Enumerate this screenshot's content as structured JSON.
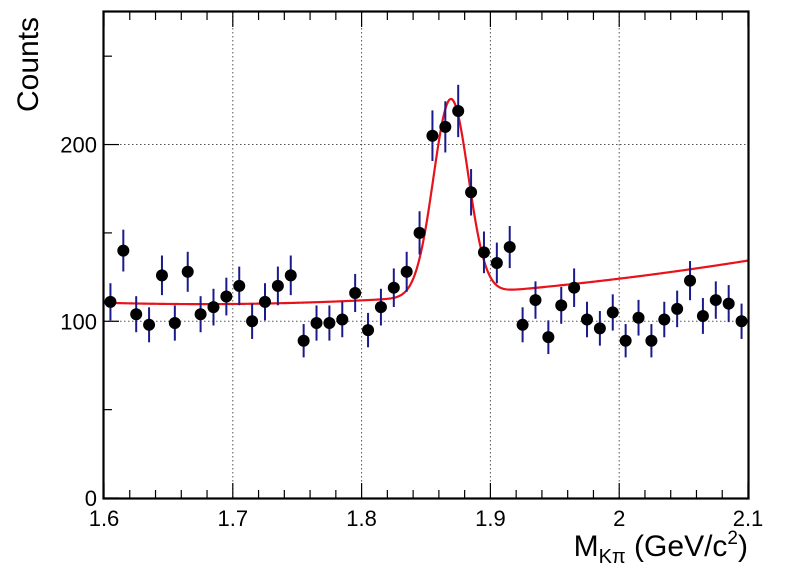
{
  "chart_data": {
    "type": "scatter",
    "title": "",
    "xlabel": "M",
    "xlabel_sub": "Kπ",
    "xlabel_unit_pre": " (GeV/c",
    "xlabel_unit_sup": "2",
    "xlabel_unit_post": ")",
    "ylabel": "Counts",
    "xlim": [
      1.6,
      2.1
    ],
    "ylim": [
      0,
      275
    ],
    "grid": true,
    "x_ticks": [
      1.6,
      1.7,
      1.8,
      1.9,
      2.0,
      2.1
    ],
    "x_tick_labels": [
      "1.6",
      "1.7",
      "1.8",
      "1.9",
      "2",
      "2.1"
    ],
    "y_ticks": [
      0,
      100,
      200
    ],
    "y_tick_labels": [
      "0",
      "100",
      "200"
    ],
    "colors": {
      "points": "#000000",
      "error_bars": "#1a1a8c",
      "fit": "#e8121a",
      "frame": "#000000",
      "grid": "#555555"
    },
    "series": [
      {
        "kind": "data-with-errors",
        "x": [
          1.605,
          1.615,
          1.625,
          1.635,
          1.645,
          1.655,
          1.665,
          1.675,
          1.685,
          1.695,
          1.705,
          1.715,
          1.725,
          1.735,
          1.745,
          1.755,
          1.765,
          1.775,
          1.785,
          1.795,
          1.805,
          1.815,
          1.825,
          1.835,
          1.845,
          1.855,
          1.865,
          1.875,
          1.885,
          1.895,
          1.905,
          1.915,
          1.925,
          1.935,
          1.945,
          1.955,
          1.965,
          1.975,
          1.985,
          1.995,
          2.005,
          2.015,
          2.025,
          2.035,
          2.045,
          2.055,
          2.065,
          2.075,
          2.085,
          2.095
        ],
        "y": [
          111,
          140,
          104,
          98,
          126,
          99,
          128,
          104,
          108,
          114,
          120,
          100,
          111,
          120,
          126,
          89,
          99,
          99,
          101,
          116,
          95,
          108,
          119,
          128,
          150,
          205,
          210,
          219,
          173,
          139,
          133,
          142,
          98,
          112,
          91,
          109,
          119,
          101,
          96,
          105,
          89,
          102,
          89,
          101,
          107,
          123,
          103,
          112,
          110,
          100
        ]
      },
      {
        "kind": "fit-curve",
        "background_a": 110.5,
        "background_b": -0.0208,
        "background_c": 0.000137,
        "peak_amplitude": 111,
        "peak_mean": 1.8693,
        "peak_sigma": 0.0135
      }
    ]
  }
}
